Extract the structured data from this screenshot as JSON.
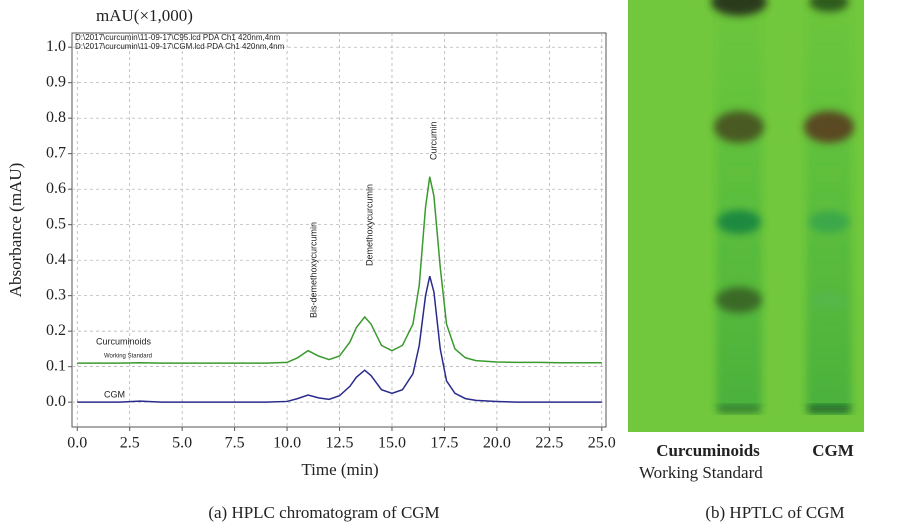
{
  "chart_data": {
    "type": "line",
    "unit_label": "mAU(×1,000)",
    "xlabel": "Time (min)",
    "ylabel": "Absorbance (mAU)",
    "x": [
      0,
      1,
      2,
      3,
      4,
      5,
      6,
      7,
      8,
      9,
      10,
      10.5,
      11,
      11.5,
      12,
      12.5,
      13,
      13.3,
      13.7,
      14,
      14.5,
      15,
      15.5,
      16,
      16.3,
      16.6,
      16.8,
      17,
      17.3,
      17.6,
      18,
      18.5,
      19,
      20,
      21,
      22,
      23,
      24,
      25
    ],
    "series": [
      {
        "name": "D:\\2017\\curcumin\\11-09-17\\C95.lcd PDA Ch1 420nm,4nm",
        "color": "#3a9a2e",
        "values": [
          0.11,
          0.11,
          0.11,
          0.111,
          0.11,
          0.11,
          0.11,
          0.11,
          0.11,
          0.11,
          0.112,
          0.125,
          0.145,
          0.13,
          0.12,
          0.13,
          0.17,
          0.21,
          0.24,
          0.22,
          0.16,
          0.145,
          0.16,
          0.22,
          0.33,
          0.55,
          0.635,
          0.58,
          0.38,
          0.22,
          0.15,
          0.125,
          0.117,
          0.113,
          0.112,
          0.112,
          0.111,
          0.111,
          0.111
        ]
      },
      {
        "name": "D:\\2017\\curcumin\\11-09-17\\CGM.lcd PDA Ch1 420nm,4nm",
        "color": "#2a2a8c",
        "values": [
          0,
          0,
          0,
          0.003,
          0,
          0,
          0,
          0,
          0,
          0,
          0.002,
          0.01,
          0.02,
          0.012,
          0.008,
          0.018,
          0.045,
          0.07,
          0.09,
          0.075,
          0.035,
          0.025,
          0.035,
          0.08,
          0.16,
          0.3,
          0.355,
          0.31,
          0.15,
          0.06,
          0.025,
          0.01,
          0.005,
          0.002,
          0,
          0,
          0,
          0,
          0
        ]
      }
    ],
    "annotations": [
      "Curcuminoids",
      "Working Standard",
      "CGM",
      "Bis-demethoxycurcumin",
      "Demethoxycurcumin",
      "Curcumin"
    ],
    "xlim": [
      -0.25,
      25.2
    ],
    "ylim": [
      -0.07,
      1.04
    ],
    "xticks": [
      {
        "value": 0,
        "label": "0.0"
      },
      2.5,
      {
        "value": 5,
        "label": "5.0"
      },
      7.5,
      {
        "value": 10,
        "label": "10.0"
      },
      12.5,
      {
        "value": 15,
        "label": "15.0"
      },
      17.5,
      {
        "value": 20,
        "label": "20.0"
      },
      22.5,
      {
        "value": 25,
        "label": "25.0"
      }
    ],
    "yticks": [
      {
        "value": 0,
        "label": "0.0"
      },
      0.1,
      0.2,
      0.3,
      0.4,
      0.5,
      0.6,
      0.7,
      0.8,
      0.9,
      {
        "value": 1,
        "label": "1.0"
      }
    ],
    "grid": true
  },
  "figure": {
    "caption_a": "(a) HPLC chromatogram of CGM",
    "caption_b": "(b) HPTLC of CGM",
    "lane_1": "Curcuminoids",
    "lane_2": "CGM",
    "lane_1_sub": "Working Standard"
  }
}
